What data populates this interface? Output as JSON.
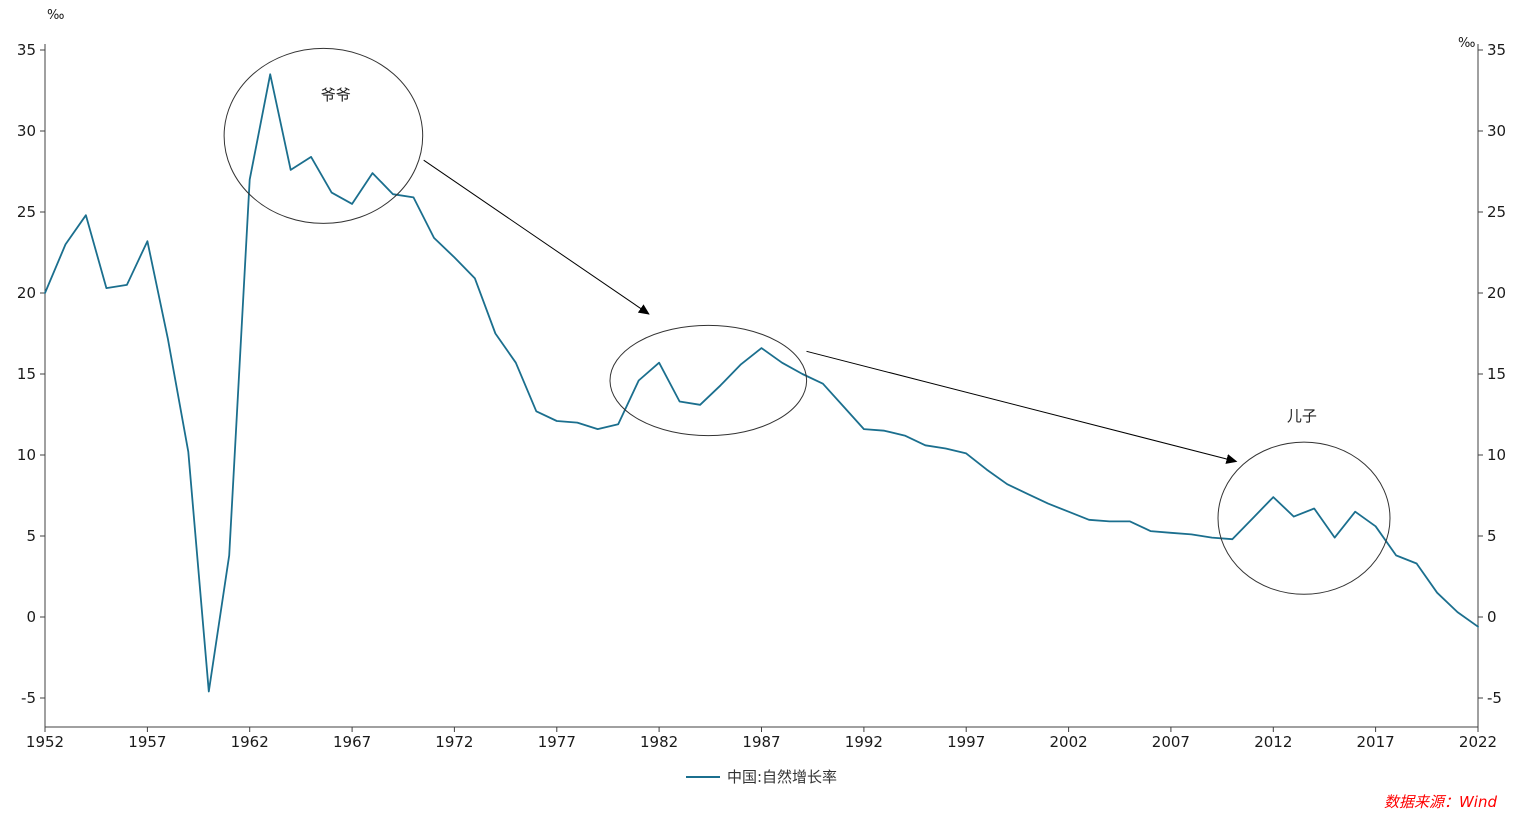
{
  "chart_data": {
    "type": "line",
    "title": "",
    "unit": "‰",
    "xlabel": "",
    "ylabel": "",
    "xlim": [
      1952,
      2022
    ],
    "ylim": [
      -5,
      35
    ],
    "grid": false,
    "legend_position": "bottom-center",
    "axis_color": "#404040",
    "yticks": [
      35,
      30,
      25,
      20,
      15,
      10,
      5,
      0,
      -5
    ],
    "xticks": [
      1952,
      1957,
      1962,
      1967,
      1972,
      1977,
      1982,
      1987,
      1992,
      1997,
      2002,
      2007,
      2012,
      2017,
      2022
    ],
    "series": [
      {
        "name": "中国:自然增长率",
        "color": "#1b6f8e",
        "years": [
          1952,
          1953,
          1954,
          1955,
          1956,
          1957,
          1958,
          1959,
          1960,
          1961,
          1962,
          1963,
          1964,
          1965,
          1966,
          1967,
          1968,
          1969,
          1970,
          1971,
          1972,
          1973,
          1974,
          1975,
          1976,
          1977,
          1978,
          1979,
          1980,
          1981,
          1982,
          1983,
          1984,
          1985,
          1986,
          1987,
          1988,
          1989,
          1990,
          1991,
          1992,
          1993,
          1994,
          1995,
          1996,
          1997,
          1998,
          1999,
          2000,
          2001,
          2002,
          2003,
          2004,
          2005,
          2006,
          2007,
          2008,
          2009,
          2010,
          2011,
          2012,
          2013,
          2014,
          2015,
          2016,
          2017,
          2018,
          2019,
          2020,
          2021,
          2022
        ],
        "values": [
          20.0,
          23.0,
          24.8,
          20.3,
          20.5,
          23.2,
          17.2,
          10.2,
          -4.6,
          3.8,
          27.0,
          33.5,
          27.6,
          28.4,
          26.2,
          25.5,
          27.4,
          26.1,
          25.9,
          23.4,
          22.2,
          20.9,
          17.5,
          15.7,
          12.7,
          12.1,
          12.0,
          11.6,
          11.9,
          14.6,
          15.7,
          13.3,
          13.1,
          14.3,
          15.6,
          16.6,
          15.7,
          15.0,
          14.4,
          13.0,
          11.6,
          11.5,
          11.2,
          10.6,
          10.4,
          10.1,
          9.1,
          8.2,
          7.6,
          7.0,
          6.5,
          6.0,
          5.9,
          5.9,
          5.3,
          5.2,
          5.1,
          4.9,
          4.8,
          6.1,
          7.4,
          6.2,
          6.7,
          4.9,
          6.5,
          5.6,
          3.8,
          3.3,
          1.5,
          0.3,
          -0.6
        ]
      }
    ],
    "annotations": {
      "ellipses": [
        {
          "name": "grandfather-generation",
          "cx_year": 1965.6,
          "cy_value": 29.7,
          "rx_years": 4.85,
          "ry_value": 5.4
        },
        {
          "name": "middle-generation",
          "cx_year": 1984.4,
          "cy_value": 14.6,
          "rx_years": 4.8,
          "ry_value": 3.4
        },
        {
          "name": "son-generation",
          "cx_year": 2013.5,
          "cy_value": 6.1,
          "rx_years": 4.2,
          "ry_value": 4.7
        }
      ],
      "labels": [
        {
          "text": "爷爷",
          "year": 1966.2,
          "value": 31.9
        },
        {
          "text": "儿子",
          "year": 2013.4,
          "value": 12.1
        }
      ],
      "arrows": [
        {
          "from_year": 1970.5,
          "from_value": 28.2,
          "to_year": 1981.5,
          "to_value": 18.7
        },
        {
          "from_year": 1989.2,
          "from_value": 16.4,
          "to_year": 2010.2,
          "to_value": 9.6
        }
      ]
    },
    "source": "数据来源：Wind"
  }
}
